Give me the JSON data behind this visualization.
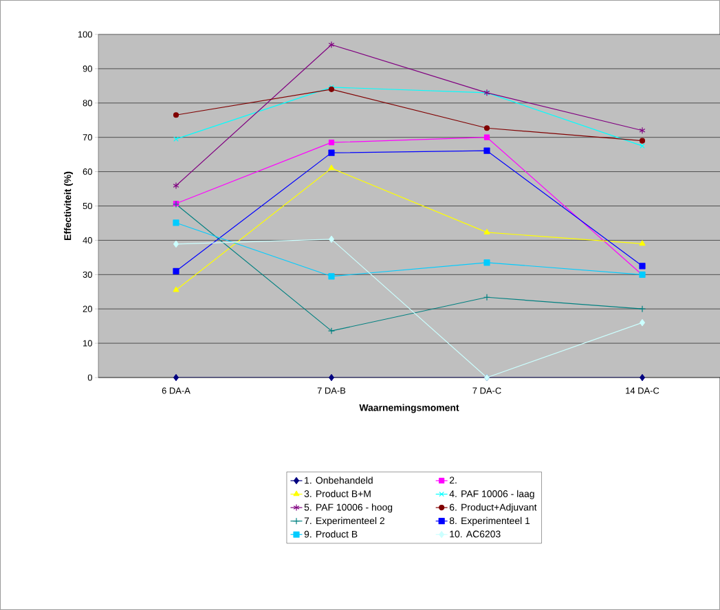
{
  "chart_data": {
    "type": "line",
    "xlabel": "Waarnemingsmoment",
    "ylabel": "Effectiviteit (%)",
    "categories": [
      "6 DA-A",
      "7 DA-B",
      "7 DA-C",
      "14 DA-C"
    ],
    "ylim": [
      0,
      100
    ],
    "yticks": [
      0,
      10,
      20,
      30,
      40,
      50,
      60,
      70,
      80,
      90,
      100
    ],
    "grid": "y",
    "legend": "bottom",
    "series": [
      {
        "name": "1. Onbehandeld",
        "color": "#000080",
        "marker": "diamond",
        "values": [
          0,
          0,
          0,
          0
        ]
      },
      {
        "name": "2.",
        "color": "#ff00ff",
        "marker": "square",
        "values": [
          50.7,
          68.5,
          70,
          29.9
        ]
      },
      {
        "name": "3. Product B+M",
        "color": "#ffff00",
        "marker": "triangle",
        "values": [
          25.5,
          61,
          42.3,
          39
        ]
      },
      {
        "name": "4. PAF 10006 - laag",
        "color": "#00ffff",
        "marker": "cross",
        "values": [
          69.5,
          84.6,
          83,
          67.5
        ]
      },
      {
        "name": "5. PAF 10006 - hoog",
        "color": "#800080",
        "marker": "cross",
        "values": [
          55.9,
          97,
          83,
          72
        ]
      },
      {
        "name": "6. Product+Adjuvant",
        "color": "#800000",
        "marker": "circle",
        "values": [
          76.5,
          84,
          72.7,
          69
        ]
      },
      {
        "name": "7. Experimenteel 2",
        "color": "#008080",
        "marker": "plus",
        "values": [
          50.5,
          13.6,
          23.4,
          20
        ]
      },
      {
        "name": "8. Experimenteel 1",
        "color": "#0000ff",
        "marker": "square",
        "values": [
          31,
          65.5,
          66.1,
          32.5
        ]
      },
      {
        "name": "9. Product B",
        "color": "#00ccff",
        "marker": "square",
        "values": [
          45.1,
          29.5,
          33.5,
          30
        ]
      },
      {
        "name": "10. AC6203",
        "color": "#ccffff",
        "marker": "diamond",
        "values": [
          38.9,
          40.3,
          0,
          16
        ]
      }
    ]
  }
}
